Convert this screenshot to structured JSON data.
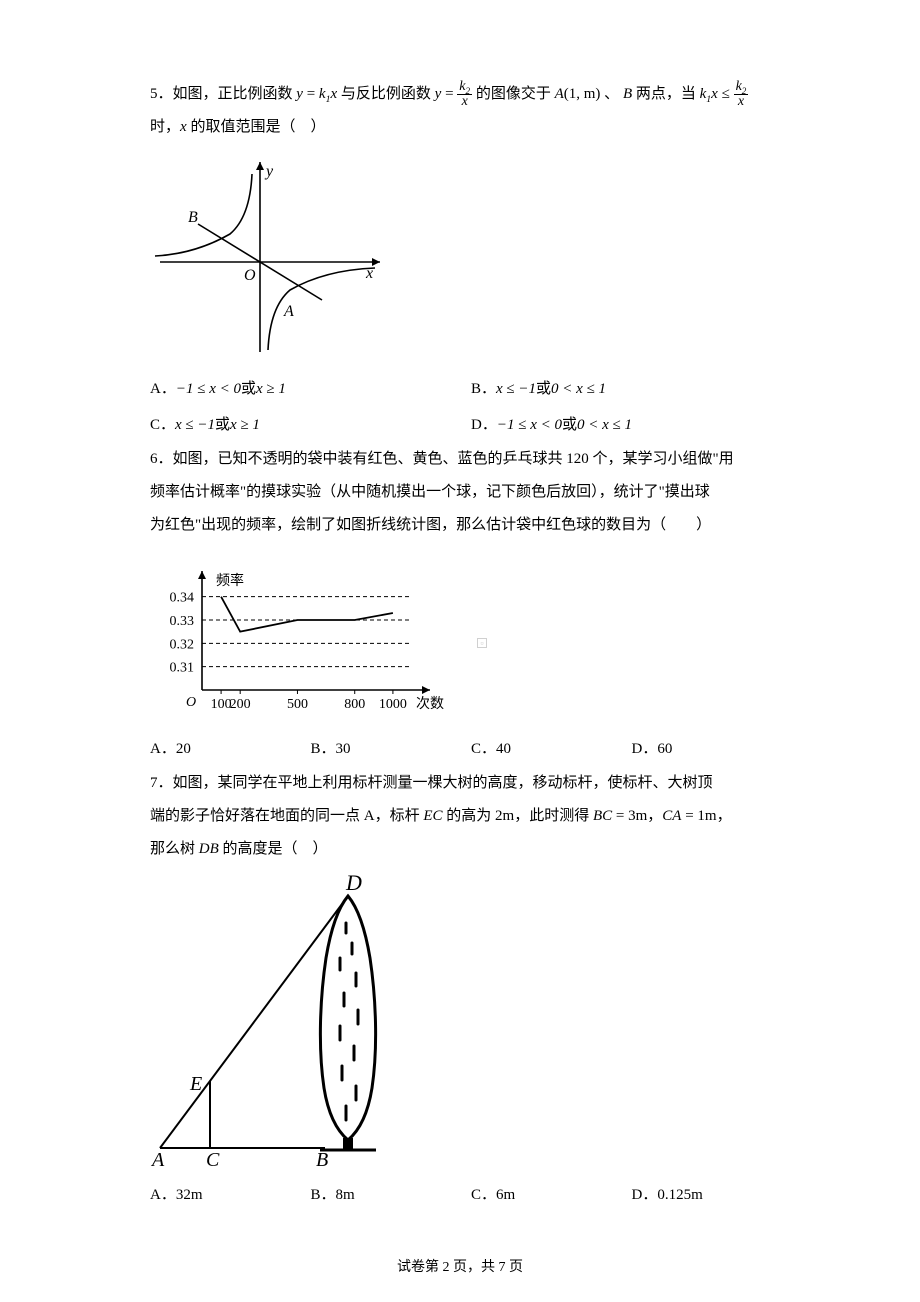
{
  "q5": {
    "number": "5．",
    "line1_pre": "如图，正比例函数 ",
    "line1_mid": " 与反比例函数 ",
    "line1_post": " 的图像交于 ",
    "line1_end": " 两点，当 ",
    "line2_pre": "时，",
    "line2_post": " 的取值范围是（　）",
    "f1_y": "y",
    "f1_eq": " = ",
    "f1_k": "k",
    "f1_sub": "1",
    "f1_x": "x",
    "f2_y": "y",
    "f2_eq": " = ",
    "f2_num_k": "k",
    "f2_num_sub": "2",
    "f2_den": "x",
    "pointA_pre": "A",
    "pointA_args": "(1, m)",
    "sep": "、",
    "pointB": "B",
    "ineq_k": "k",
    "ineq_sub": "1",
    "ineq_x": "x ≤ ",
    "ineq_num_k": "k",
    "ineq_num_sub": "2",
    "ineq_den": "x",
    "x_text": "x",
    "optA_label": "A．",
    "optA_p1": "−1 ≤ x < 0",
    "optA_or": "或",
    "optA_p2": "x ≥ 1",
    "optB_label": "B．",
    "optB_p1": "x ≤ −1",
    "optB_or": "或",
    "optB_p2": "0 < x ≤ 1",
    "optC_label": "C．",
    "optC_p1": "x ≤ −1",
    "optC_or": "或",
    "optC_p2": "x ≥ 1",
    "optD_label": "D．",
    "optD_p1": "−1 ≤ x < 0",
    "optD_or": "或",
    "optD_p2": "0 < x ≤ 1",
    "figure": {
      "yLabel": "y",
      "xLabel": "x",
      "O": "O",
      "A": "A",
      "B": "B",
      "stroke": "#000000",
      "axis_width": 1.6,
      "curve_width": 1.6
    }
  },
  "q6": {
    "number": "6．",
    "text1": "如图，已知不透明的袋中装有红色、黄色、蓝色的乒乓球共 120 个，某学习小组做\"用",
    "text2": "频率估计概率\"的摸球实验（从中随机摸出一个球，记下颜色后放回），统计了\"摸出球",
    "text3": "为红色\"出现的频率，绘制了如图折线统计图，那么估计袋中红色球的数目为（　　）",
    "optA_label": "A．",
    "optA_val": "20",
    "optB_label": "B．",
    "optB_val": "30",
    "optC_label": "C．",
    "optC_val": "40",
    "optD_label": "D．",
    "optD_val": "60",
    "chart": {
      "type": "line",
      "x_values": [
        100,
        200,
        500,
        800,
        1000
      ],
      "y_values": [
        0.34,
        0.325,
        0.33,
        0.33,
        0.333
      ],
      "x_ticks": [
        "100",
        "200",
        "500",
        "800",
        "1000"
      ],
      "y_ticks": [
        "0.31",
        "0.32",
        "0.33",
        "0.34"
      ],
      "xlabel": "次数",
      "ylabel": "频率",
      "origin": "O",
      "xlim": [
        0,
        1100
      ],
      "ylim": [
        0.3,
        0.345
      ],
      "grid_style": "dashed",
      "grid_color": "#000000",
      "line_color": "#000000",
      "axis_color": "#000000",
      "label_fontsize": 14,
      "tick_fontsize": 14
    }
  },
  "q7": {
    "number": "7．",
    "text1_a": "如图，某同学在平地上利用标杆测量一棵大树的高度，移动标杆，使标杆、大树顶",
    "text2_a": "端的影子恰好落在地面的同一点 A，标杆 ",
    "EC": "EC",
    "text2_b": " 的高为 ",
    "h_ec": "2m",
    "text2_c": "，此时测得 ",
    "BC": "BC",
    "eq1": " = 3m",
    "comma": "，",
    "CA": "CA",
    "eq2": " = 1m",
    "text2_d": "，",
    "text3_a": "那么树 ",
    "DB": "DB",
    "text3_b": " 的高度是（　）",
    "optA_label": "A．",
    "optA_val": "32m",
    "optB_label": "B．",
    "optB_val": "8m",
    "optC_label": "C．",
    "optC_val": "6m",
    "optD_label": "D．",
    "optD_val": "0.125m",
    "figure": {
      "A": "A",
      "B": "B",
      "C": "C",
      "D": "D",
      "E": "E",
      "line_color": "#000000",
      "tree_fill": "#000000",
      "line_width": 2
    }
  },
  "footer": "试卷第 2 页，共 7 页",
  "colors": {
    "text": "#000000",
    "bg": "#ffffff"
  }
}
